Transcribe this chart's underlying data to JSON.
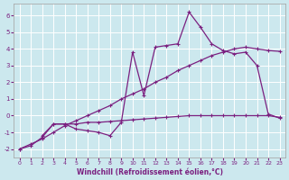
{
  "background_color": "#cce8ee",
  "grid_color": "#b0d0d8",
  "line_color": "#7b2080",
  "xlabel": "Windchill (Refroidissement éolien,°C)",
  "xlim": [
    -0.5,
    23.5
  ],
  "ylim": [
    -2.5,
    6.7
  ],
  "yticks": [
    -2,
    -1,
    0,
    1,
    2,
    3,
    4,
    5,
    6
  ],
  "xticks": [
    0,
    1,
    2,
    3,
    4,
    5,
    6,
    7,
    8,
    9,
    10,
    11,
    12,
    13,
    14,
    15,
    16,
    17,
    18,
    19,
    20,
    21,
    22,
    23
  ],
  "series_smooth_x": [
    0,
    1,
    2,
    3,
    4,
    5,
    6,
    7,
    8,
    9,
    10,
    11,
    12,
    13,
    14,
    15,
    16,
    17,
    18,
    19,
    20,
    21,
    22,
    23
  ],
  "series_smooth_y": [
    -2.0,
    -1.7,
    -1.4,
    -1.0,
    -0.6,
    -0.3,
    0.0,
    0.3,
    0.6,
    1.0,
    1.3,
    1.6,
    2.0,
    2.3,
    2.7,
    3.0,
    3.3,
    3.6,
    3.8,
    4.0,
    4.1,
    4.0,
    3.9,
    3.85
  ],
  "series_flat_x": [
    0,
    1,
    2,
    3,
    4,
    5,
    6,
    7,
    8,
    9,
    10,
    11,
    12,
    13,
    14,
    15,
    16,
    17,
    18,
    19,
    20,
    21,
    22,
    23
  ],
  "series_flat_y": [
    -2.0,
    -1.8,
    -1.3,
    -0.5,
    -0.5,
    -0.5,
    -0.4,
    -0.4,
    -0.35,
    -0.3,
    -0.25,
    -0.2,
    -0.15,
    -0.1,
    -0.05,
    0.0,
    0.0,
    0.0,
    0.0,
    0.0,
    0.0,
    0.0,
    0.0,
    -0.1
  ],
  "series_jagged_x": [
    2,
    3,
    4,
    5,
    6,
    7,
    8,
    9,
    10,
    11,
    12,
    13,
    14,
    15,
    16,
    17,
    18,
    19,
    20,
    21,
    22,
    23
  ],
  "series_jagged_y": [
    -1.2,
    -0.5,
    -0.5,
    -0.8,
    -0.9,
    -1.0,
    -1.2,
    -0.4,
    3.8,
    1.2,
    4.1,
    4.2,
    4.3,
    6.2,
    5.3,
    4.3,
    3.9,
    3.7,
    3.8,
    3.0,
    0.1,
    -0.15
  ]
}
